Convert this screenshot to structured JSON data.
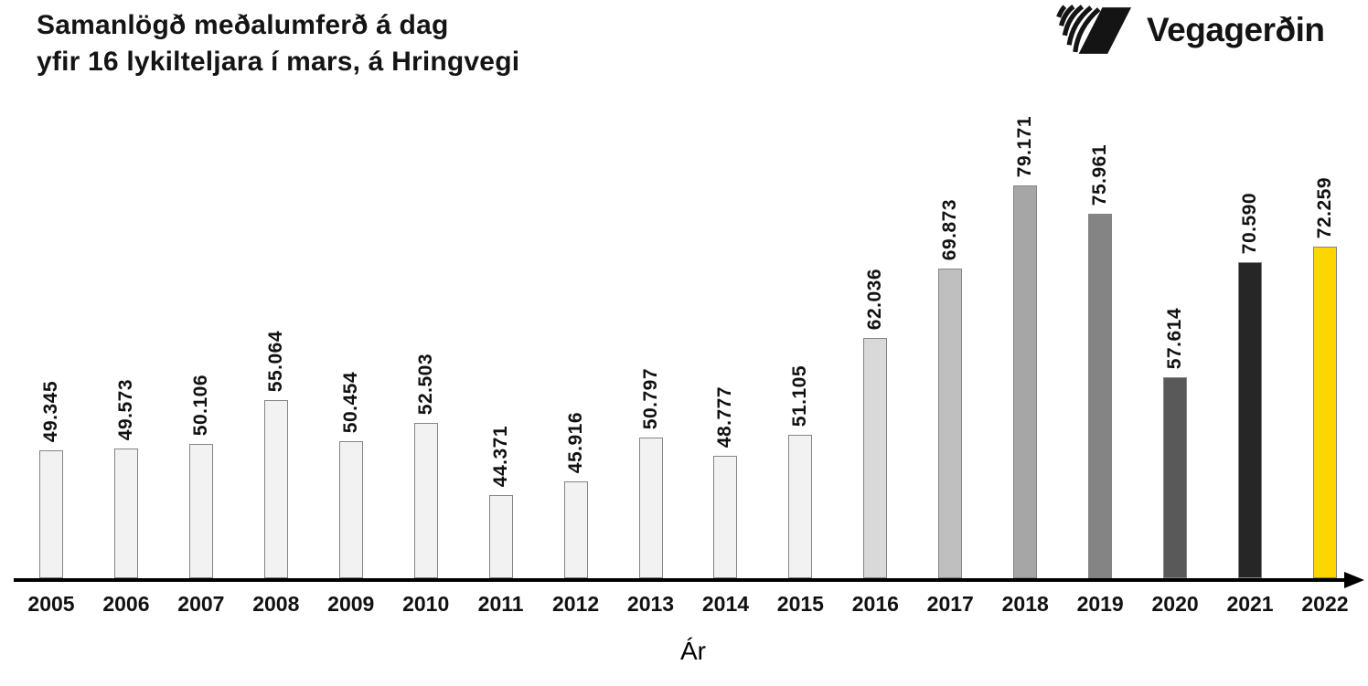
{
  "title": {
    "line1": "Samanlögð meðalumferð á dag",
    "line2": "yfir 16 lykilteljara í mars, á Hringvegi"
  },
  "logo": {
    "text": "Vegagerðin"
  },
  "chart_data": {
    "type": "bar",
    "title": "Samanlögð meðalumferð á dag yfir 16 lykilteljara í mars, á Hringvegi",
    "xlabel": "Ár",
    "ylabel": "",
    "categories": [
      "2005",
      "2006",
      "2007",
      "2008",
      "2009",
      "2010",
      "2011",
      "2012",
      "2013",
      "2014",
      "2015",
      "2016",
      "2017",
      "2018",
      "2019",
      "2020",
      "2021",
      "2022"
    ],
    "values": [
      49345,
      49573,
      50106,
      55064,
      50454,
      52503,
      44371,
      45916,
      50797,
      48777,
      51105,
      62036,
      69873,
      79171,
      75961,
      57614,
      70590,
      72259
    ],
    "value_labels": [
      "49.345",
      "49.573",
      "50.106",
      "55.064",
      "50.454",
      "52.503",
      "44.371",
      "45.916",
      "50.797",
      "48.777",
      "51.105",
      "62.036",
      "69.873",
      "79.171",
      "75.961",
      "57.614",
      "70.590",
      "72.259"
    ],
    "bar_colors": [
      "#F2F2F2",
      "#F2F2F2",
      "#F2F2F2",
      "#F2F2F2",
      "#F2F2F2",
      "#F2F2F2",
      "#F2F2F2",
      "#F2F2F2",
      "#F2F2F2",
      "#F2F2F2",
      "#F2F2F2",
      "#D9D9D9",
      "#BFBFBF",
      "#A6A6A6",
      "#848484",
      "#595959",
      "#262626",
      "#FDD500"
    ],
    "bar_border_color": "#848484",
    "axis_color": "#000000",
    "text_color": "#111111",
    "highlight_color": "#FDD500",
    "baseline_value": 35000,
    "ymax": 79171,
    "grid": false,
    "legend": "none",
    "value_label_rotation": 90
  }
}
